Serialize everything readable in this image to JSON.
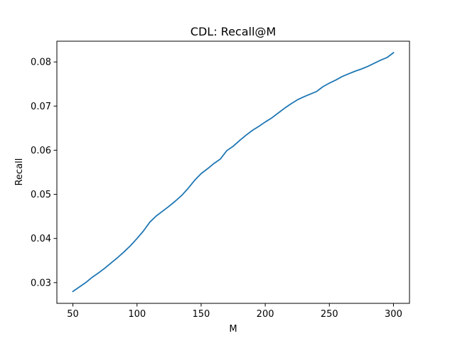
{
  "chart_data": {
    "type": "line",
    "title": "CDL: Recall@M",
    "xlabel": "M",
    "ylabel": "Recall",
    "xlim": [
      37.5,
      312.5
    ],
    "ylim": [
      0.0253,
      0.0847
    ],
    "xticks": [
      50,
      100,
      150,
      200,
      250,
      300
    ],
    "yticks": [
      0.03,
      0.04,
      0.05,
      0.06,
      0.07,
      0.08
    ],
    "grid": false,
    "legend": "none",
    "series": [
      {
        "color": "#1f77b4",
        "x": [
          50,
          55,
          60,
          65,
          70,
          75,
          80,
          85,
          90,
          95,
          100,
          105,
          110,
          115,
          120,
          125,
          130,
          135,
          140,
          145,
          150,
          155,
          160,
          165,
          170,
          175,
          180,
          185,
          190,
          195,
          200,
          205,
          210,
          215,
          220,
          225,
          230,
          235,
          240,
          245,
          250,
          255,
          260,
          265,
          270,
          275,
          280,
          285,
          290,
          295,
          300
        ],
        "y": [
          0.028,
          0.029,
          0.03,
          0.0312,
          0.0322,
          0.0333,
          0.0345,
          0.0357,
          0.037,
          0.0384,
          0.04,
          0.0417,
          0.0437,
          0.0451,
          0.0462,
          0.0473,
          0.0485,
          0.0498,
          0.0514,
          0.0532,
          0.0547,
          0.0558,
          0.057,
          0.058,
          0.0599,
          0.0609,
          0.0622,
          0.0634,
          0.0645,
          0.0654,
          0.0664,
          0.0673,
          0.0684,
          0.0695,
          0.0705,
          0.0714,
          0.0721,
          0.0727,
          0.0733,
          0.0744,
          0.0752,
          0.0759,
          0.0767,
          0.0773,
          0.0779,
          0.0784,
          0.079,
          0.0797,
          0.0804,
          0.081,
          0.0821
        ]
      }
    ]
  }
}
